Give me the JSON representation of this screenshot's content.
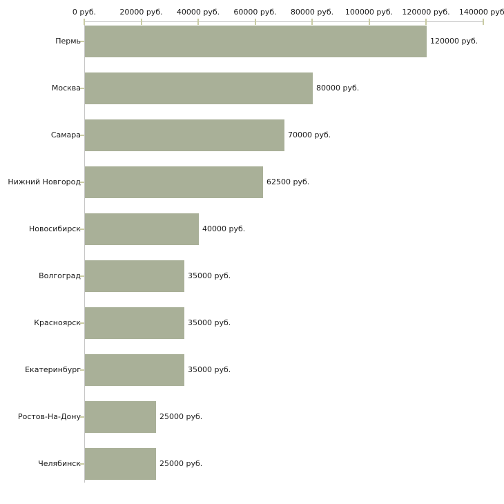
{
  "chart_data": {
    "type": "bar",
    "orientation": "horizontal",
    "title": "",
    "categories": [
      "Пермь",
      "Москва",
      "Самара",
      "Нижний Новгород",
      "Новосибирск",
      "Волгоград",
      "Красноярск",
      "Екатеринбург",
      "Ростов-На-Дону",
      "Челябинск"
    ],
    "values": [
      120000,
      80000,
      70000,
      62500,
      40000,
      35000,
      35000,
      35000,
      25000,
      25000
    ],
    "value_labels": [
      "120000 руб.",
      "80000 руб.",
      "70000 руб.",
      "62500 руб.",
      "40000 руб.",
      "35000 руб.",
      "35000 руб.",
      "35000 руб.",
      "25000 руб.",
      "25000 руб."
    ],
    "x_tick_values": [
      0,
      20000,
      40000,
      60000,
      80000,
      100000,
      120000,
      140000
    ],
    "x_tick_labels": [
      "0 руб.",
      "20000 руб.",
      "40000 руб.",
      "60000 руб.",
      "80000 руб.",
      "100000 руб.",
      "120000 руб.",
      "140000 руб."
    ],
    "xlim": [
      0,
      140000
    ],
    "unit": "руб.",
    "xlabel": "",
    "ylabel": "",
    "grid": false,
    "legend_position": "none",
    "colors": {
      "bar": "#a9b098",
      "axis": "#c6c6c6",
      "tick": "#c9cba3",
      "text": "#1a1a1a",
      "background": "#ffffff"
    }
  }
}
